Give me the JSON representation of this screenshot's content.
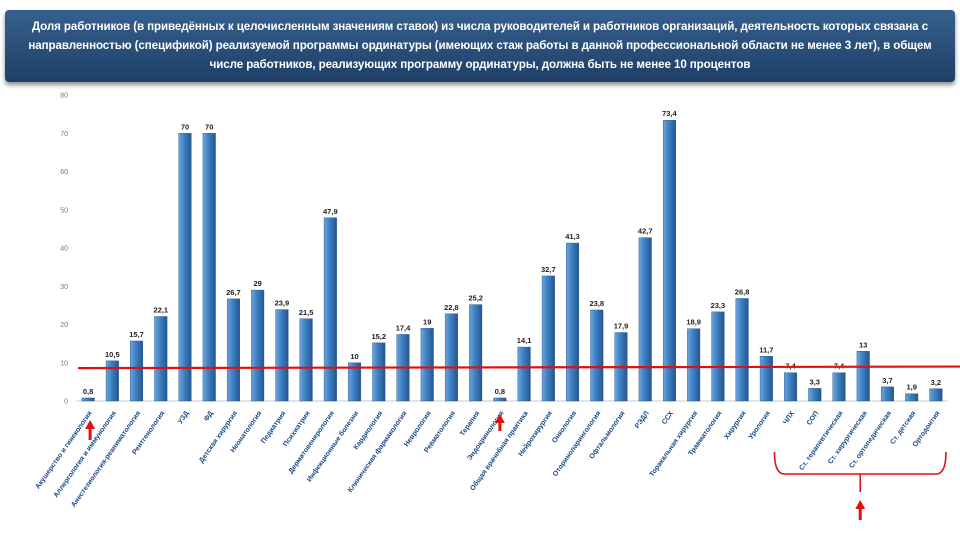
{
  "header": {
    "title": "Доля работников (в приведённых к целочисленным значениям ставок) из числа руководителей и работников организаций, деятельность которых связана с направленностью (спецификой) реализуемой программы ординатуры (имеющих стаж работы в данной профессиональной области не менее 3 лет), в общем числе работников, реализующих программу ординатуры, должна быть не менее 10 процентов"
  },
  "chart_data": {
    "type": "bar",
    "title": "Доля работников (в приведённых к целочисленным значениям ставок) из числа руководителей и работников организаций, деятельность которых связана с направленностью (спецификой) реализуемой программы ординатуры (имеющих стаж работы в данной профессиональной области не менее 3 лет), в общем числе работников, реализующих программу ординатуры, должна быть не менее 10 процентов",
    "xlabel": "",
    "ylabel": "",
    "ylim": [
      0,
      80
    ],
    "yticks": [
      0,
      10,
      20,
      30,
      40,
      50,
      60,
      70,
      80
    ],
    "threshold": 10,
    "colors": {
      "bar": "#3d7fc1",
      "threshold_line": "#e01010",
      "arrow": "#e01010",
      "bracket": "#e01010"
    },
    "categories": [
      "Акушерство и гинекология",
      "Аллергология и иммунология",
      "Анестезиология-реаниматология",
      "Рентгенология",
      "УЗД",
      "ФД",
      "Детская хирургия",
      "Неонатология",
      "Педиатрия",
      "Психиатрия",
      "Дерматовенерология",
      "Инфекционные болезни",
      "Кардиология",
      "Клиническая фармакология",
      "Неврология",
      "Ревматология",
      "Терапия",
      "Эндокринология",
      "Общая врачебная практика",
      "Нейрохирургия",
      "Онкология",
      "Оториноларингология",
      "Офтальмология",
      "РЭДЛ",
      "ССХ",
      "Торакальная хирургия",
      "Травматология",
      "Хирургия",
      "Урология",
      "ЧЛХ",
      "СОП",
      "Ст. терапевтическая",
      "Ст. хирургическая",
      "Ст. ортопедическая",
      "Ст. детская",
      "Ортодонтия"
    ],
    "values": [
      0.8,
      10.5,
      15.7,
      22.1,
      70,
      70,
      26.7,
      29,
      23.9,
      21.5,
      47.9,
      10,
      15.2,
      17.4,
      19,
      22.8,
      25.2,
      0.8,
      14.1,
      32.7,
      41.3,
      23.8,
      17.9,
      42.7,
      73.4,
      18.9,
      23.3,
      26.8,
      11.7,
      7.4,
      3.3,
      7.4,
      13,
      3.7,
      1.9,
      3.2
    ],
    "labels": [
      "0,8",
      "10,5",
      "15,7",
      "22,1",
      "70",
      "70",
      "26,7",
      "29",
      "23,9",
      "21,5",
      "47,9",
      "10",
      "15,2",
      "17,4",
      "19",
      "22,8",
      "25,2",
      "0,8",
      "14,1",
      "32,7",
      "41,3",
      "23,8",
      "17,9",
      "42,7",
      "73,4",
      "18,9",
      "23,3",
      "26,8",
      "11,7",
      "7,4",
      "3,3",
      "7,4",
      "13",
      "3,7",
      "1,9",
      "3,2"
    ]
  }
}
